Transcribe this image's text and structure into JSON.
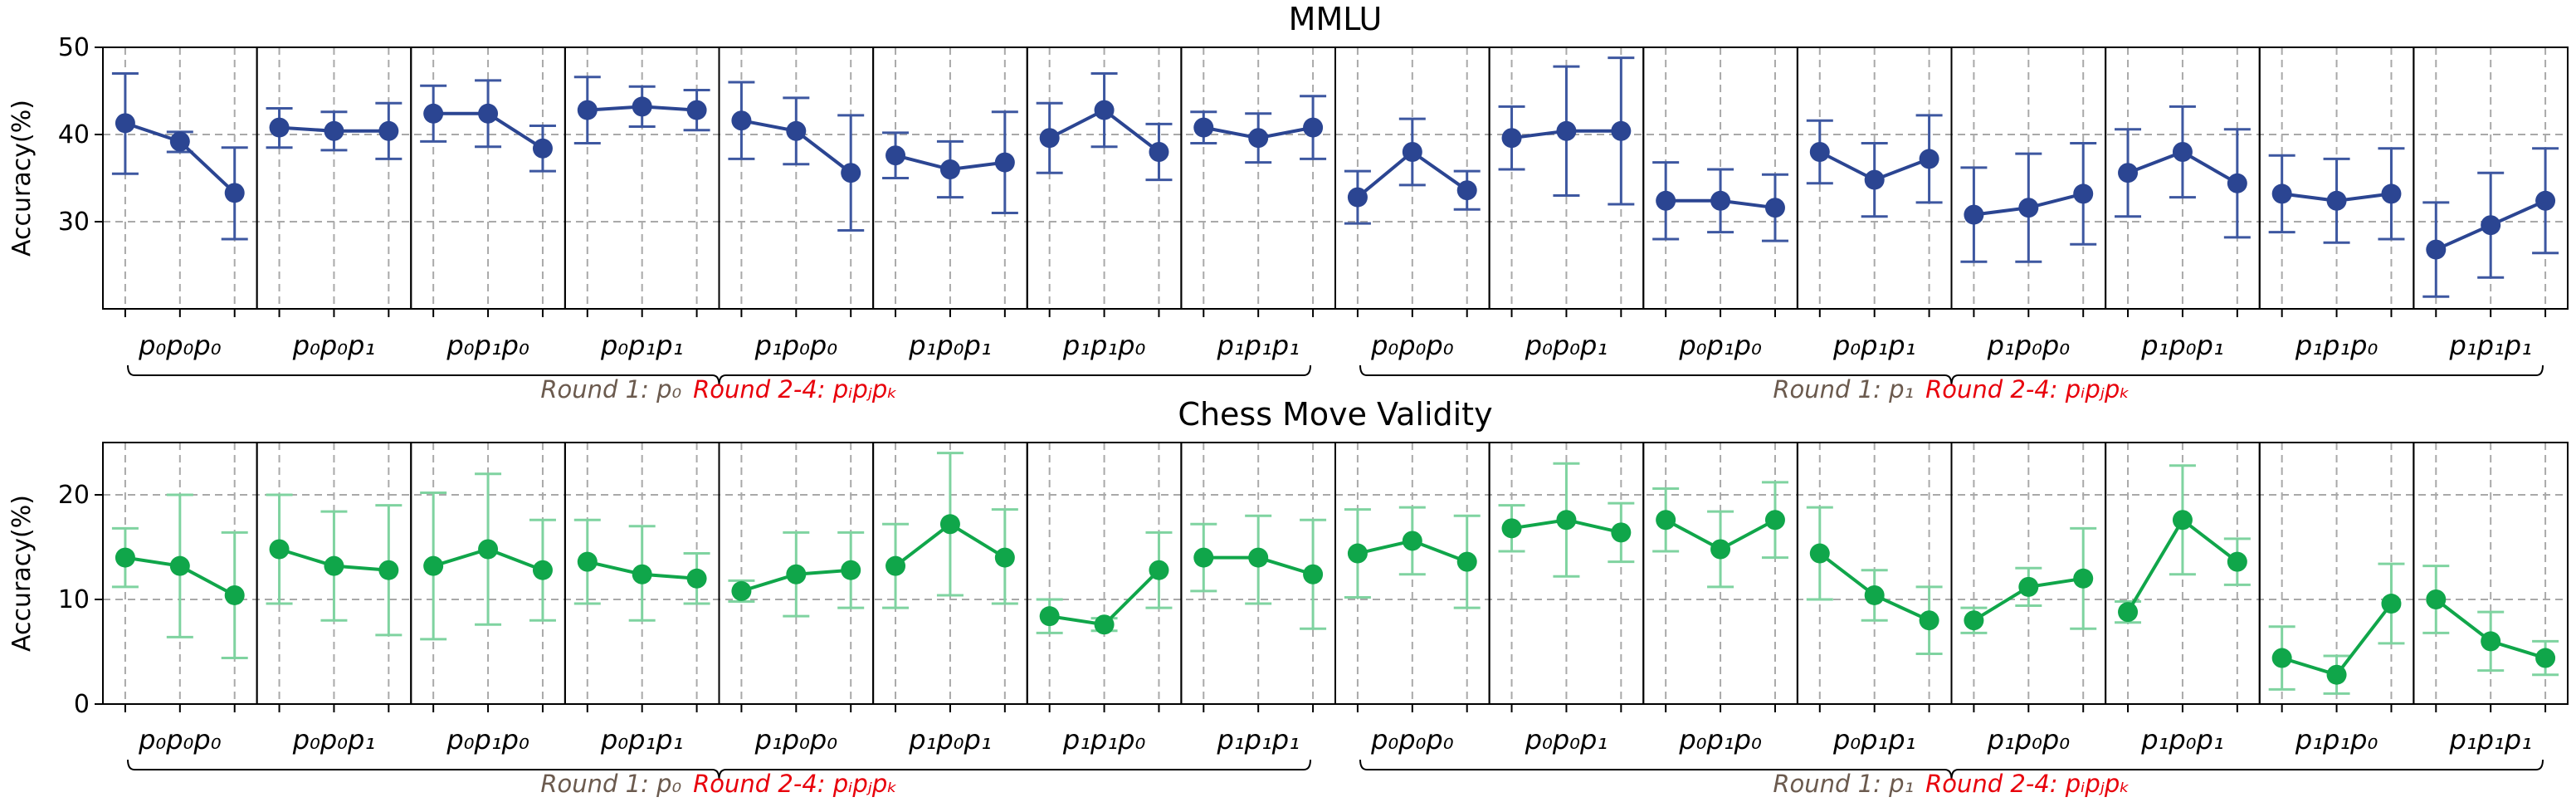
{
  "chart_data": [
    {
      "type": "line",
      "title": "MMLU",
      "ylabel": "Accuracy(%)",
      "ylim": [
        20,
        50
      ],
      "yticks": [
        30,
        40,
        50
      ],
      "color": "#2b4592",
      "errcolor": "#3d57a0",
      "grid": true,
      "x_labels": [
        "p₀p₀p₀",
        "p₀p₀p₁",
        "p₀p₁p₀",
        "p₀p₁p₁",
        "p₁p₀p₀",
        "p₁p₀p₁",
        "p₁p₁p₀",
        "p₁p₁p₁",
        "p₀p₀p₀",
        "p₀p₀p₁",
        "p₀p₁p₀",
        "p₀p₁p₁",
        "p₁p₀p₀",
        "p₁p₀p₁",
        "p₁p₁p₀",
        "p₁p₁p₁"
      ],
      "subplots": [
        {
          "values": [
            41.3,
            39.2,
            33.3
          ],
          "err": [
            [
              35.5,
              47.0
            ],
            [
              38.0,
              40.3
            ],
            [
              28.0,
              38.5
            ]
          ]
        },
        {
          "values": [
            40.8,
            40.4,
            40.4
          ],
          "err": [
            [
              38.5,
              43.0
            ],
            [
              38.2,
              42.6
            ],
            [
              37.2,
              43.6
            ]
          ]
        },
        {
          "values": [
            42.4,
            42.4,
            38.4
          ],
          "err": [
            [
              39.2,
              45.6
            ],
            [
              38.6,
              46.2
            ],
            [
              35.8,
              41.0
            ]
          ]
        },
        {
          "values": [
            42.8,
            43.2,
            42.8
          ],
          "err": [
            [
              39.0,
              46.6
            ],
            [
              40.9,
              45.5
            ],
            [
              40.5,
              45.1
            ]
          ]
        },
        {
          "values": [
            41.6,
            40.4,
            35.6
          ],
          "err": [
            [
              37.2,
              46.0
            ],
            [
              36.6,
              44.2
            ],
            [
              29.0,
              42.2
            ]
          ]
        },
        {
          "values": [
            37.6,
            36.0,
            36.8
          ],
          "err": [
            [
              35.0,
              40.2
            ],
            [
              32.8,
              39.2
            ],
            [
              31.0,
              42.6
            ]
          ]
        },
        {
          "values": [
            39.6,
            42.8,
            38.0
          ],
          "err": [
            [
              35.6,
              43.6
            ],
            [
              38.6,
              47.0
            ],
            [
              34.8,
              41.2
            ]
          ]
        },
        {
          "values": [
            40.8,
            39.6,
            40.8
          ],
          "err": [
            [
              39.0,
              42.6
            ],
            [
              36.8,
              42.4
            ],
            [
              37.2,
              44.4
            ]
          ]
        },
        {
          "values": [
            32.8,
            38.0,
            33.6
          ],
          "err": [
            [
              29.8,
              35.8
            ],
            [
              34.2,
              41.8
            ],
            [
              31.4,
              35.8
            ]
          ]
        },
        {
          "values": [
            39.6,
            40.4,
            40.4
          ],
          "err": [
            [
              36.0,
              43.2
            ],
            [
              33.0,
              47.8
            ],
            [
              32.0,
              48.8
            ]
          ]
        },
        {
          "values": [
            32.4,
            32.4,
            31.6
          ],
          "err": [
            [
              28.0,
              36.8
            ],
            [
              28.8,
              36.0
            ],
            [
              27.8,
              35.4
            ]
          ]
        },
        {
          "values": [
            38.0,
            34.8,
            37.2
          ],
          "err": [
            [
              34.4,
              41.6
            ],
            [
              30.6,
              39.0
            ],
            [
              32.2,
              42.2
            ]
          ]
        },
        {
          "values": [
            30.8,
            31.6,
            33.2
          ],
          "err": [
            [
              25.4,
              36.2
            ],
            [
              25.4,
              37.8
            ],
            [
              27.4,
              39.0
            ]
          ]
        },
        {
          "values": [
            35.6,
            38.0,
            34.4
          ],
          "err": [
            [
              30.6,
              40.6
            ],
            [
              32.8,
              43.2
            ],
            [
              28.2,
              40.6
            ]
          ]
        },
        {
          "values": [
            33.2,
            32.4,
            33.2
          ],
          "err": [
            [
              28.8,
              37.6
            ],
            [
              27.6,
              37.2
            ],
            [
              28.0,
              38.4
            ]
          ]
        },
        {
          "values": [
            26.8,
            29.6,
            32.4
          ],
          "err": [
            [
              21.4,
              32.2
            ],
            [
              23.6,
              35.6
            ],
            [
              26.4,
              38.4
            ]
          ]
        }
      ]
    },
    {
      "type": "line",
      "title": "Chess Move Validity",
      "ylabel": "Accuracy(%)",
      "ylim": [
        0,
        25
      ],
      "yticks": [
        0,
        10,
        20
      ],
      "color": "#10a64a",
      "errcolor": "#7fd3a0",
      "grid": true,
      "x_labels": [
        "p₀p₀p₀",
        "p₀p₀p₁",
        "p₀p₁p₀",
        "p₀p₁p₁",
        "p₁p₀p₀",
        "p₁p₀p₁",
        "p₁p₁p₀",
        "p₁p₁p₁",
        "p₀p₀p₀",
        "p₀p₀p₁",
        "p₀p₁p₀",
        "p₀p₁p₁",
        "p₁p₀p₀",
        "p₁p₀p₁",
        "p₁p₁p₀",
        "p₁p₁p₁"
      ],
      "subplots": [
        {
          "values": [
            14.0,
            13.2,
            10.4
          ],
          "err": [
            [
              11.2,
              16.8
            ],
            [
              6.4,
              20.0
            ],
            [
              4.4,
              16.4
            ]
          ]
        },
        {
          "values": [
            14.8,
            13.2,
            12.8
          ],
          "err": [
            [
              9.6,
              20.0
            ],
            [
              8.0,
              18.4
            ],
            [
              6.6,
              19.0
            ]
          ]
        },
        {
          "values": [
            13.2,
            14.8,
            12.8
          ],
          "err": [
            [
              6.2,
              20.2
            ],
            [
              7.6,
              22.0
            ],
            [
              8.0,
              17.6
            ]
          ]
        },
        {
          "values": [
            13.6,
            12.4,
            12.0
          ],
          "err": [
            [
              9.6,
              17.6
            ],
            [
              8.0,
              17.0
            ],
            [
              9.6,
              14.4
            ]
          ]
        },
        {
          "values": [
            10.8,
            12.4,
            12.8
          ],
          "err": [
            [
              9.8,
              11.8
            ],
            [
              8.4,
              16.4
            ],
            [
              9.2,
              16.4
            ]
          ]
        },
        {
          "values": [
            13.2,
            17.2,
            14.0
          ],
          "err": [
            [
              9.2,
              17.2
            ],
            [
              10.4,
              24.0
            ],
            [
              9.6,
              18.6
            ]
          ]
        },
        {
          "values": [
            8.4,
            7.6,
            12.8
          ],
          "err": [
            [
              6.8,
              10.0
            ],
            [
              7.0,
              8.2
            ],
            [
              9.2,
              16.4
            ]
          ]
        },
        {
          "values": [
            14.0,
            14.0,
            12.4
          ],
          "err": [
            [
              10.8,
              17.2
            ],
            [
              9.6,
              18.0
            ],
            [
              7.2,
              17.6
            ]
          ]
        },
        {
          "values": [
            14.4,
            15.6,
            13.6
          ],
          "err": [
            [
              10.2,
              18.6
            ],
            [
              12.4,
              18.8
            ],
            [
              9.2,
              18.0
            ]
          ]
        },
        {
          "values": [
            16.8,
            17.6,
            16.4
          ],
          "err": [
            [
              14.6,
              19.0
            ],
            [
              12.2,
              23.0
            ],
            [
              13.6,
              19.2
            ]
          ]
        },
        {
          "values": [
            17.6,
            14.8,
            17.6
          ],
          "err": [
            [
              14.6,
              20.6
            ],
            [
              11.2,
              18.4
            ],
            [
              14.0,
              21.2
            ]
          ]
        },
        {
          "values": [
            14.4,
            10.4,
            8.0
          ],
          "err": [
            [
              10.0,
              18.8
            ],
            [
              8.0,
              12.8
            ],
            [
              4.8,
              11.2
            ]
          ]
        },
        {
          "values": [
            8.0,
            11.2,
            12.0
          ],
          "err": [
            [
              6.8,
              9.2
            ],
            [
              9.4,
              13.0
            ],
            [
              7.2,
              16.8
            ]
          ]
        },
        {
          "values": [
            8.8,
            17.6,
            13.6
          ],
          "err": [
            [
              7.8,
              9.8
            ],
            [
              12.4,
              22.8
            ],
            [
              11.4,
              15.8
            ]
          ]
        },
        {
          "values": [
            4.4,
            2.8,
            9.6
          ],
          "err": [
            [
              1.4,
              7.4
            ],
            [
              1.0,
              4.6
            ],
            [
              5.8,
              13.4
            ]
          ]
        },
        {
          "values": [
            10.0,
            6.0,
            4.4
          ],
          "err": [
            [
              6.8,
              13.2
            ],
            [
              3.2,
              8.8
            ],
            [
              2.8,
              6.0
            ]
          ]
        }
      ]
    }
  ],
  "group_labels": [
    {
      "round1": "Round 1: p₀",
      "round2": "Round 2-4: pᵢpⱼpₖ"
    },
    {
      "round1": "Round 1: p₁",
      "round2": "Round 2-4: pᵢpⱼpₖ"
    }
  ]
}
